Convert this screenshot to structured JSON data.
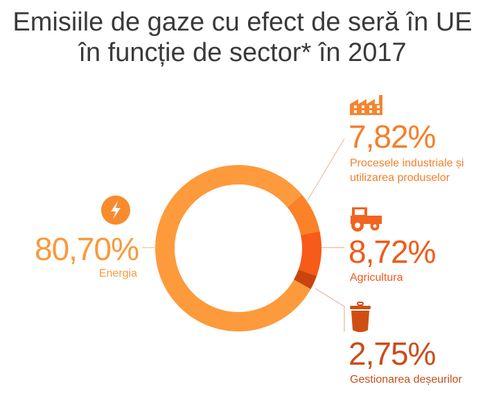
{
  "chart_data": {
    "type": "pie",
    "title": "Emisiile de gaze cu efect de seră în UE în funcție de sector* în 2017",
    "title_lines": [
      "Emisiile de gaze cu efect de seră în UE în",
      "funcție de sector* în 2017"
    ],
    "slices": [
      {
        "name": "Energia",
        "value": 80.7,
        "label": "80,70%",
        "color": "#FD9A3C",
        "text_color": "#FA9A3A",
        "icon": "lightning-icon"
      },
      {
        "name": "Procesele industriale și utilizarea produselor",
        "label_lines": [
          "Procesele industriale și",
          "utilizarea produselor"
        ],
        "value": 7.82,
        "label": "7,82%",
        "color": "#FB8228",
        "text_color": "#F47F2A",
        "icon": "factory-icon"
      },
      {
        "name": "Agricultura",
        "value": 8.72,
        "label": "8,72%",
        "color": "#F85A17",
        "text_color": "#F05A1A",
        "icon": "tractor-icon"
      },
      {
        "name": "Gestionarea deșeurilor",
        "value": 2.75,
        "label": "2,75%",
        "color": "#C9440E",
        "text_color": "#C94E1A",
        "icon": "trash-icon"
      }
    ]
  }
}
